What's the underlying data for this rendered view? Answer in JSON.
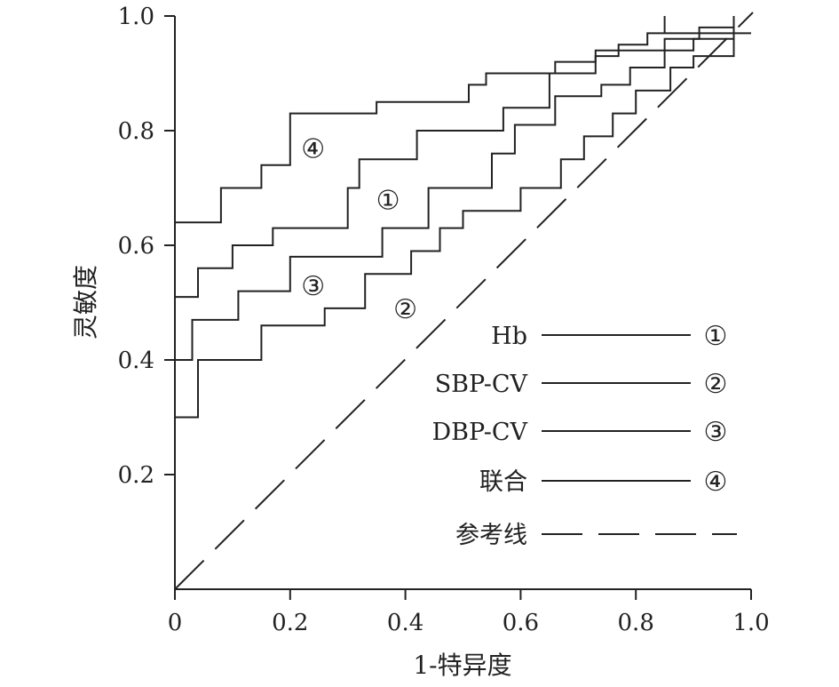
{
  "chart_data": {
    "type": "line",
    "title": "",
    "xlabel": "1-特异度",
    "ylabel": "灵敏度",
    "xlim": [
      0,
      1.0
    ],
    "ylim": [
      0,
      1.0
    ],
    "x_ticks": [
      0,
      0.2,
      0.4,
      0.6,
      0.8,
      1.0
    ],
    "x_tick_labels": [
      "0",
      "0.2",
      "0.4",
      "0.6",
      "0.8",
      "1.0"
    ],
    "y_ticks": [
      0.2,
      0.4,
      0.6,
      0.8,
      1.0
    ],
    "y_tick_labels": [
      "0.2",
      "0.4",
      "0.6",
      "0.8",
      "1.0"
    ],
    "grid": false,
    "legend_position": "bottom-right",
    "series": [
      {
        "name": "Hb",
        "marker": "①",
        "marker_at": [
          0.37,
          0.68
        ],
        "points": [
          [
            0,
            0.51
          ],
          [
            0.04,
            0.51
          ],
          [
            0.04,
            0.56
          ],
          [
            0.1,
            0.56
          ],
          [
            0.1,
            0.6
          ],
          [
            0.17,
            0.6
          ],
          [
            0.17,
            0.63
          ],
          [
            0.3,
            0.63
          ],
          [
            0.3,
            0.7
          ],
          [
            0.32,
            0.7
          ],
          [
            0.32,
            0.75
          ],
          [
            0.42,
            0.75
          ],
          [
            0.42,
            0.8
          ],
          [
            0.57,
            0.8
          ],
          [
            0.57,
            0.84
          ],
          [
            0.65,
            0.84
          ],
          [
            0.65,
            0.9
          ],
          [
            0.73,
            0.9
          ],
          [
            0.73,
            0.94
          ],
          [
            0.85,
            0.94
          ],
          [
            0.85,
            0.96
          ],
          [
            0.91,
            0.96
          ],
          [
            0.91,
            0.98
          ],
          [
            0.97,
            0.98
          ]
        ]
      },
      {
        "name": "SBP-CV",
        "marker": "②",
        "marker_at": [
          0.4,
          0.49
        ],
        "points": [
          [
            0,
            0.3
          ],
          [
            0.04,
            0.3
          ],
          [
            0.04,
            0.4
          ],
          [
            0.15,
            0.4
          ],
          [
            0.15,
            0.46
          ],
          [
            0.26,
            0.46
          ],
          [
            0.26,
            0.49
          ],
          [
            0.33,
            0.49
          ],
          [
            0.33,
            0.55
          ],
          [
            0.41,
            0.55
          ],
          [
            0.41,
            0.59
          ],
          [
            0.46,
            0.59
          ],
          [
            0.46,
            0.63
          ],
          [
            0.5,
            0.63
          ],
          [
            0.5,
            0.66
          ],
          [
            0.6,
            0.66
          ],
          [
            0.6,
            0.7
          ],
          [
            0.67,
            0.7
          ],
          [
            0.67,
            0.75
          ],
          [
            0.71,
            0.75
          ],
          [
            0.71,
            0.79
          ],
          [
            0.76,
            0.79
          ],
          [
            0.76,
            0.83
          ],
          [
            0.8,
            0.83
          ],
          [
            0.8,
            0.87
          ],
          [
            0.86,
            0.87
          ],
          [
            0.86,
            0.91
          ],
          [
            0.9,
            0.91
          ],
          [
            0.9,
            0.93
          ],
          [
            0.97,
            0.93
          ],
          [
            0.97,
            0.98
          ]
        ]
      },
      {
        "name": "DBP-CV",
        "marker": "③",
        "marker_at": [
          0.24,
          0.53
        ],
        "points": [
          [
            0,
            0.4
          ],
          [
            0.03,
            0.4
          ],
          [
            0.03,
            0.47
          ],
          [
            0.11,
            0.47
          ],
          [
            0.11,
            0.52
          ],
          [
            0.2,
            0.52
          ],
          [
            0.2,
            0.58
          ],
          [
            0.36,
            0.58
          ],
          [
            0.36,
            0.63
          ],
          [
            0.44,
            0.63
          ],
          [
            0.44,
            0.7
          ],
          [
            0.55,
            0.7
          ],
          [
            0.55,
            0.76
          ],
          [
            0.59,
            0.76
          ],
          [
            0.59,
            0.81
          ],
          [
            0.66,
            0.81
          ],
          [
            0.66,
            0.86
          ],
          [
            0.74,
            0.86
          ],
          [
            0.74,
            0.88
          ],
          [
            0.79,
            0.88
          ],
          [
            0.79,
            0.91
          ],
          [
            0.85,
            0.91
          ],
          [
            0.85,
            0.94
          ],
          [
            0.9,
            0.94
          ],
          [
            0.9,
            0.96
          ],
          [
            0.97,
            0.96
          ]
        ]
      },
      {
        "name": "联合",
        "marker": "④",
        "marker_at": [
          0.24,
          0.77
        ],
        "points": [
          [
            0,
            0.64
          ],
          [
            0.08,
            0.64
          ],
          [
            0.08,
            0.7
          ],
          [
            0.15,
            0.7
          ],
          [
            0.15,
            0.74
          ],
          [
            0.2,
            0.74
          ],
          [
            0.2,
            0.83
          ],
          [
            0.35,
            0.83
          ],
          [
            0.35,
            0.85
          ],
          [
            0.51,
            0.85
          ],
          [
            0.51,
            0.88
          ],
          [
            0.54,
            0.88
          ],
          [
            0.54,
            0.9
          ],
          [
            0.66,
            0.9
          ],
          [
            0.66,
            0.92
          ],
          [
            0.73,
            0.92
          ],
          [
            0.73,
            0.93
          ],
          [
            0.77,
            0.93
          ],
          [
            0.77,
            0.95
          ],
          [
            0.82,
            0.95
          ],
          [
            0.82,
            0.97
          ],
          [
            0.85,
            0.97
          ],
          [
            0.85,
            1.0
          ],
          [
            0.85,
            0.97
          ],
          [
            0.97,
            0.97
          ],
          [
            0.97,
            1.0
          ],
          [
            0.97,
            0.97
          ],
          [
            1.0,
            0.97
          ]
        ]
      }
    ],
    "reference": {
      "name": "参考线",
      "points": [
        [
          0,
          0
        ],
        [
          1.0,
          1.0
        ]
      ],
      "style": "dashed"
    }
  },
  "legend": [
    {
      "label": "Hb",
      "marker": "①",
      "style": "solid"
    },
    {
      "label": "SBP-CV",
      "marker": "②",
      "style": "solid"
    },
    {
      "label": "DBP-CV",
      "marker": "③",
      "style": "solid"
    },
    {
      "label": "联合",
      "marker": "④",
      "style": "solid"
    },
    {
      "label": "参考线",
      "marker": "",
      "style": "dashed"
    }
  ],
  "colors": {
    "line": "#222222",
    "background": "#ffffff"
  }
}
